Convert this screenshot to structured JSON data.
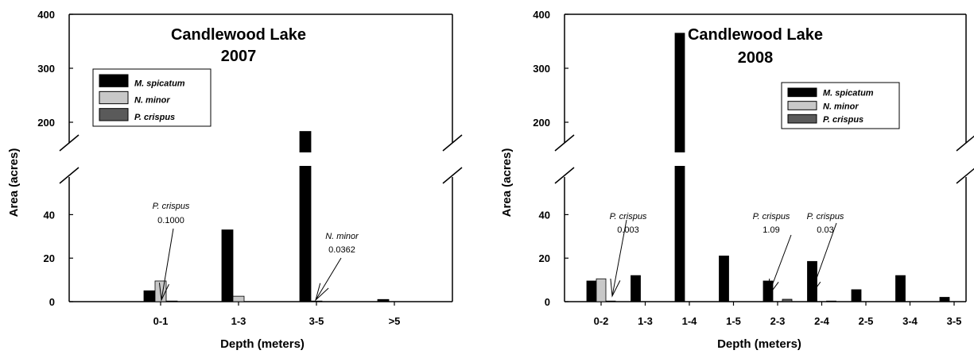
{
  "chart_data": [
    {
      "type": "bar",
      "title": "Candlewood Lake",
      "subtitle": "2007",
      "xlabel": "Depth (meters)",
      "ylabel": "Area (acres)",
      "categories": [
        "0-1",
        "1-3",
        "3-5",
        ">5"
      ],
      "series": [
        {
          "name": "M. spicatum",
          "values": [
            5,
            33,
            183,
            1
          ],
          "color": "#000000"
        },
        {
          "name": "N. minor",
          "values": [
            9.5,
            2.5,
            0.0362,
            0
          ],
          "color": "#c8c8c8"
        },
        {
          "name": "P. crispus",
          "values": [
            0.1,
            0,
            0,
            0
          ],
          "color": "#5a5a5a"
        }
      ],
      "y_axis": {
        "scale": "broken",
        "lower_range": [
          0,
          50
        ],
        "upper_range": [
          150,
          400
        ],
        "lower_ticks": [
          "0",
          "20",
          "40"
        ],
        "upper_ticks": [
          "200",
          "300",
          "400"
        ]
      },
      "legend_position": "top-left",
      "annotations": [
        {
          "species": "P. crispus",
          "value": "0.1000",
          "category": "0-1"
        },
        {
          "species": "N. minor",
          "value": "0.0362",
          "category": "3-5"
        }
      ],
      "grid": false
    },
    {
      "type": "bar",
      "title": "Candlewood Lake",
      "subtitle": "2008",
      "xlabel": "Depth (meters)",
      "ylabel": "Area (acres)",
      "categories": [
        "0-2",
        "1-3",
        "1-4",
        "1-5",
        "2-3",
        "2-4",
        "2-5",
        "3-4",
        "3-5"
      ],
      "series": [
        {
          "name": "M. spicatum",
          "values": [
            9.5,
            12,
            365,
            21,
            9.5,
            18.5,
            5.5,
            12,
            2
          ],
          "color": "#000000"
        },
        {
          "name": "N. minor",
          "values": [
            10.5,
            0,
            0,
            0,
            0,
            0,
            0,
            0,
            0
          ],
          "color": "#c8c8c8"
        },
        {
          "name": "P. crispus",
          "values": [
            0.003,
            0,
            0,
            0,
            1.09,
            0.03,
            0,
            0,
            0
          ],
          "color": "#5a5a5a"
        }
      ],
      "y_axis": {
        "scale": "broken",
        "lower_range": [
          0,
          50
        ],
        "upper_range": [
          150,
          400
        ],
        "lower_ticks": [
          "0",
          "20",
          "40"
        ],
        "upper_ticks": [
          "200",
          "300",
          "400"
        ]
      },
      "legend_position": "top-right",
      "annotations": [
        {
          "species": "P. crispus",
          "value": "0.003",
          "category": "0-2"
        },
        {
          "species": "P. crispus",
          "value": "1.09",
          "category": "2-3"
        },
        {
          "species": "P. crispus",
          "value": "0.03",
          "category": "2-4"
        }
      ],
      "grid": false
    }
  ]
}
